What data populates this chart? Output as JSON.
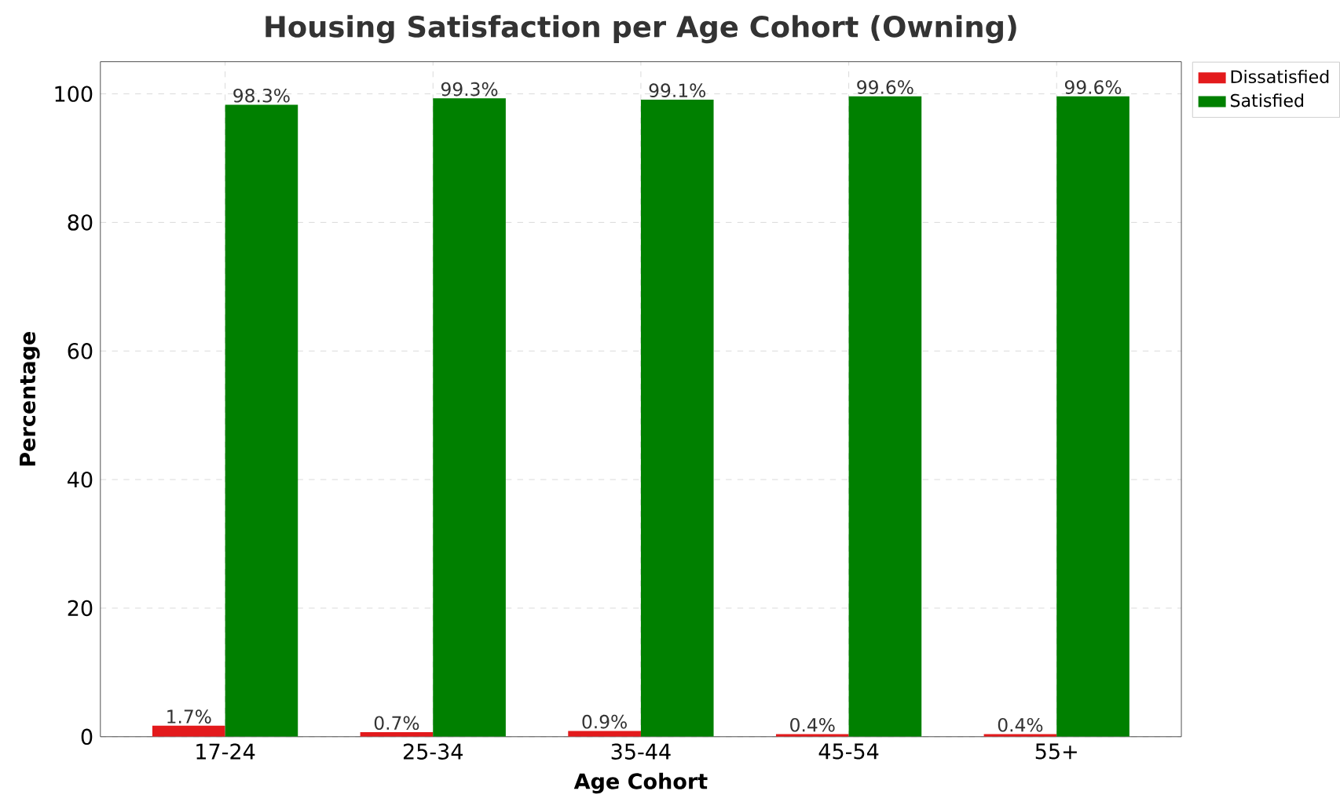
{
  "chart_data": {
    "type": "bar",
    "title": "Housing Satisfaction per Age Cohort (Owning)",
    "xlabel": "Age Cohort",
    "ylabel": "Percentage",
    "categories": [
      "17-24",
      "25-34",
      "35-44",
      "45-54",
      "55+"
    ],
    "series": [
      {
        "name": "Dissatisfied",
        "color": "#e31a1c",
        "values": [
          1.7,
          0.7,
          0.9,
          0.4,
          0.4
        ],
        "value_labels": [
          "1.7%",
          "0.7%",
          "0.9%",
          "0.4%",
          "0.4%"
        ]
      },
      {
        "name": "Satisfied",
        "color": "#008000",
        "values": [
          98.3,
          99.3,
          99.1,
          99.6,
          99.6
        ],
        "value_labels": [
          "98.3%",
          "99.3%",
          "99.1%",
          "99.6%",
          "99.6%"
        ]
      }
    ],
    "ylim": [
      0,
      105
    ],
    "yticks": [
      0,
      20,
      40,
      60,
      80,
      100
    ],
    "grid": true,
    "legend": "top right"
  }
}
